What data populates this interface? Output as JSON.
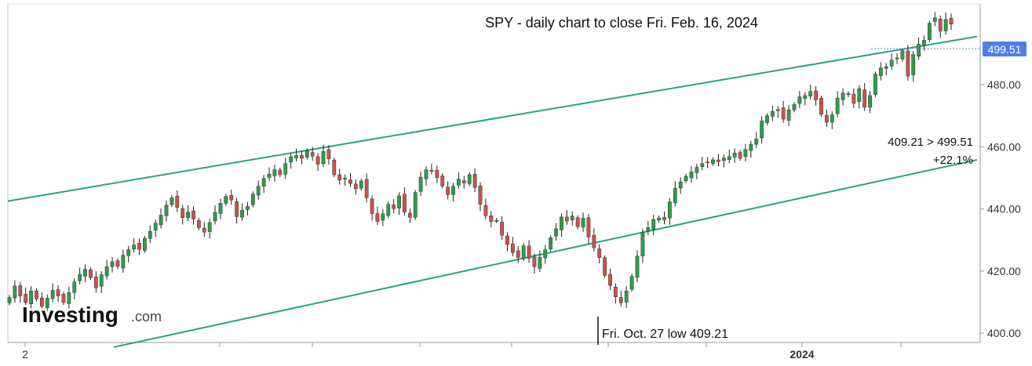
{
  "chart_data": {
    "type": "candlestick",
    "title": "SPY - daily chart to close Fri. Feb. 16, 2024",
    "y_axis": {
      "ticks": [
        "400.00",
        "420.00",
        "440.00",
        "460.00",
        "480.00"
      ],
      "min": 397,
      "max": 506,
      "side": "right"
    },
    "x_axis": {
      "labels": [
        "2",
        "2024"
      ]
    },
    "last_price": {
      "value": 499.51,
      "label": "499.51",
      "color": "#4e7ee8"
    },
    "annotations": {
      "change_line1": "409.21 > 499.51",
      "change_line2": "+22.1%",
      "low_label": "Fri. Oct. 27 low 409.21"
    },
    "watermark": {
      "brand": "Investing",
      "suffix": ".com"
    },
    "channel": {
      "color": "#26a387",
      "upper": {
        "start": 442.5,
        "end": 495.5
      },
      "lower": {
        "start": 395.5,
        "end": 455.8
      }
    },
    "colors": {
      "up": "#2e9d4a",
      "down": "#d0504a",
      "wick": "#222222"
    },
    "closes": [
      411.5,
      415.2,
      412.0,
      409.8,
      413.6,
      411.0,
      408.7,
      411.3,
      413.8,
      412.0,
      409.9,
      413.1,
      416.5,
      418.9,
      420.6,
      417.9,
      414.6,
      418.8,
      421.4,
      423.0,
      421.5,
      425.1,
      426.9,
      428.4,
      427.0,
      430.5,
      432.8,
      435.4,
      438.0,
      441.2,
      443.6,
      440.5,
      437.2,
      439.0,
      436.8,
      434.0,
      432.5,
      435.6,
      438.9,
      441.8,
      444.0,
      442.9,
      437.5,
      439.6,
      440.8,
      444.8,
      447.3,
      449.8,
      451.2,
      452.7,
      451.0,
      454.6,
      456.8,
      457.2,
      456.3,
      458.7,
      457.0,
      454.4,
      458.5,
      456.1,
      451.0,
      449.3,
      449.9,
      448.2,
      446.5,
      449.0,
      443.6,
      438.5,
      436.0,
      438.4,
      441.5,
      440.1,
      444.2,
      439.0,
      437.3,
      445.3,
      450.2,
      452.6,
      452.3,
      450.1,
      447.4,
      444.6,
      447.3,
      449.6,
      448.3,
      451.0,
      446.9,
      441.5,
      437.8,
      435.9,
      436.3,
      431.5,
      428.6,
      426.0,
      424.4,
      428.1,
      424.1,
      421.4,
      424.4,
      426.9,
      430.7,
      433.6,
      437.4,
      436.1,
      437.7,
      434.3,
      437.0,
      431.0,
      427.5,
      424.3,
      418.6,
      415.4,
      411.7,
      409.8,
      413.6,
      418.3,
      424.8,
      432.4,
      434.0,
      436.6,
      437.1,
      436.5,
      442.3,
      446.7,
      448.7,
      450.5,
      451.9,
      453.4,
      454.6,
      455.0,
      455.8,
      455.2,
      456.4,
      456.9,
      458.0,
      456.3,
      459.1,
      460.8,
      462.5,
      468.3,
      470.0,
      471.4,
      472.0,
      468.9,
      471.9,
      473.6,
      476.1,
      476.5,
      477.8,
      475.1,
      470.5,
      467.9,
      470.3,
      475.7,
      477.3,
      476.8,
      474.0,
      478.7,
      472.7,
      476.5,
      483.4,
      485.4,
      485.8,
      487.9,
      488.6,
      490.9,
      482.8,
      489.7,
      493.0,
      494.3,
      499.8,
      501.5,
      497.3,
      501.0,
      499.5
    ]
  }
}
